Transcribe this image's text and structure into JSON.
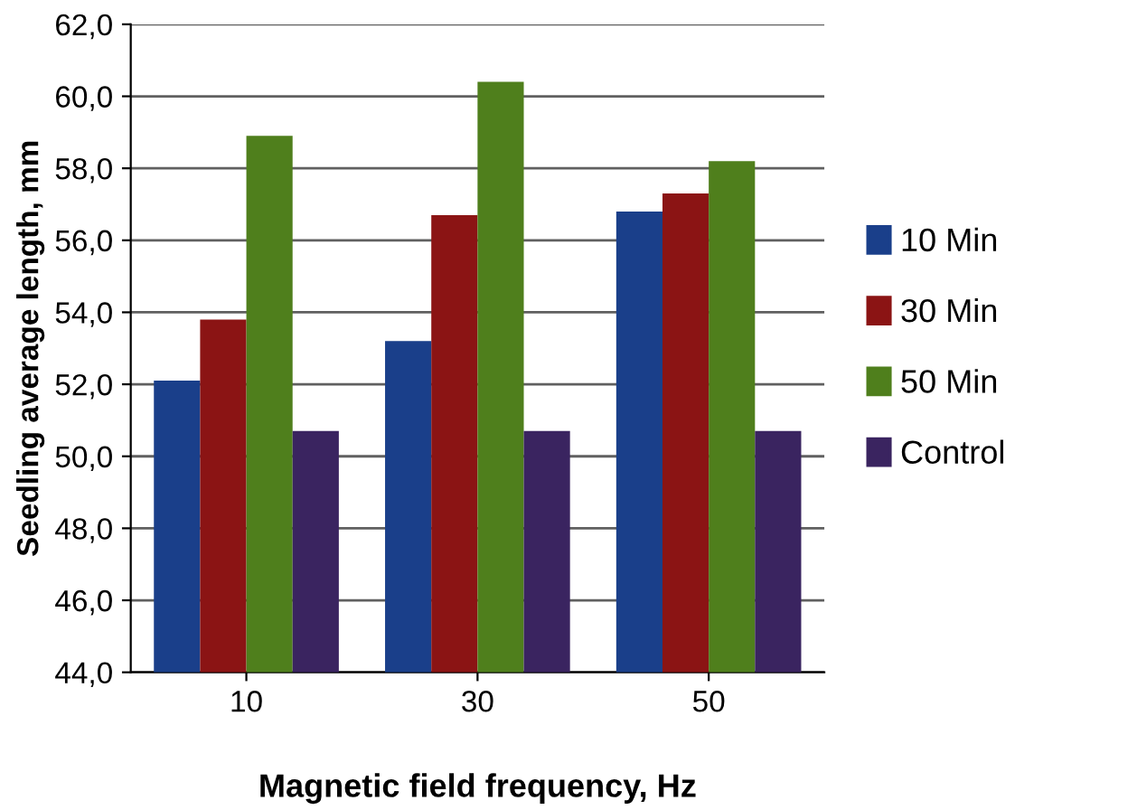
{
  "chart_data": {
    "type": "bar",
    "xlabel": "Magnetic field frequency, Hz",
    "ylabel": "Seedling average length, mm",
    "categories": [
      "10",
      "30",
      "50"
    ],
    "series": [
      {
        "name": "10 Min",
        "color": "#1a3f8a",
        "values": [
          52.1,
          53.2,
          56.8
        ]
      },
      {
        "name": "30 Min",
        "color": "#8b1414",
        "values": [
          53.8,
          56.7,
          57.3
        ]
      },
      {
        "name": "50 Min",
        "color": "#4f7f1c",
        "values": [
          58.9,
          60.4,
          58.2
        ]
      },
      {
        "name": "Control",
        "color": "#3a2460",
        "values": [
          50.7,
          50.7,
          50.7
        ]
      }
    ],
    "ylim": [
      44,
      62
    ],
    "yticks": [
      {
        "value": 44,
        "label": "44,0"
      },
      {
        "value": 46,
        "label": "46,0"
      },
      {
        "value": 48,
        "label": "48,0"
      },
      {
        "value": 50,
        "label": "50,0"
      },
      {
        "value": 52,
        "label": "52,0"
      },
      {
        "value": 54,
        "label": "54,0"
      },
      {
        "value": 56,
        "label": "56,0"
      },
      {
        "value": 58,
        "label": "58,0"
      },
      {
        "value": 60,
        "label": "60,0"
      },
      {
        "value": 62,
        "label": "62,0"
      }
    ],
    "grid": "y",
    "legend": "right"
  }
}
